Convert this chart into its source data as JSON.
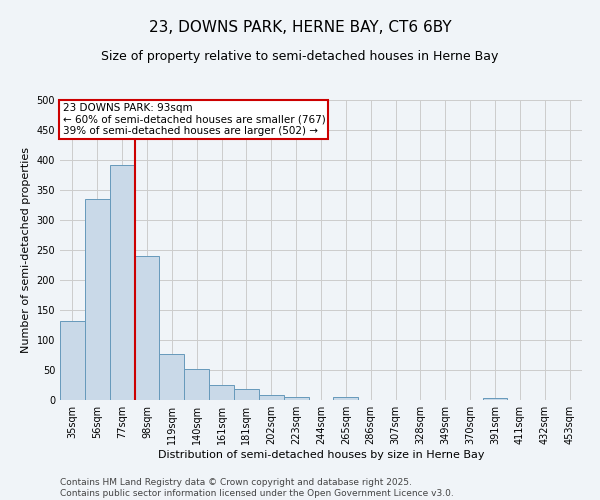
{
  "title": "23, DOWNS PARK, HERNE BAY, CT6 6BY",
  "subtitle": "Size of property relative to semi-detached houses in Herne Bay",
  "xlabel": "Distribution of semi-detached houses by size in Herne Bay",
  "ylabel": "Number of semi-detached properties",
  "categories": [
    "35sqm",
    "56sqm",
    "77sqm",
    "98sqm",
    "119sqm",
    "140sqm",
    "161sqm",
    "181sqm",
    "202sqm",
    "223sqm",
    "244sqm",
    "265sqm",
    "286sqm",
    "307sqm",
    "328sqm",
    "349sqm",
    "370sqm",
    "391sqm",
    "411sqm",
    "432sqm",
    "453sqm"
  ],
  "values": [
    131,
    335,
    392,
    240,
    76,
    52,
    25,
    19,
    8,
    5,
    0,
    5,
    0,
    0,
    0,
    0,
    0,
    4,
    0,
    0,
    0
  ],
  "bar_color": "#c9d9e8",
  "bar_edge_color": "#6699bb",
  "grid_color": "#cccccc",
  "background_color": "#f0f4f8",
  "marker_bin_index": 2,
  "marker_line_color": "#cc0000",
  "annotation_line1": "23 DOWNS PARK: 93sqm",
  "annotation_line2": "← 60% of semi-detached houses are smaller (767)",
  "annotation_line3": "39% of semi-detached houses are larger (502) →",
  "annotation_box_color": "#cc0000",
  "footer_line1": "Contains HM Land Registry data © Crown copyright and database right 2025.",
  "footer_line2": "Contains public sector information licensed under the Open Government Licence v3.0.",
  "ylim": [
    0,
    500
  ],
  "yticks": [
    0,
    50,
    100,
    150,
    200,
    250,
    300,
    350,
    400,
    450,
    500
  ],
  "title_fontsize": 11,
  "subtitle_fontsize": 9,
  "axis_label_fontsize": 8,
  "tick_fontsize": 7,
  "footer_fontsize": 6.5,
  "annotation_fontsize": 7.5
}
